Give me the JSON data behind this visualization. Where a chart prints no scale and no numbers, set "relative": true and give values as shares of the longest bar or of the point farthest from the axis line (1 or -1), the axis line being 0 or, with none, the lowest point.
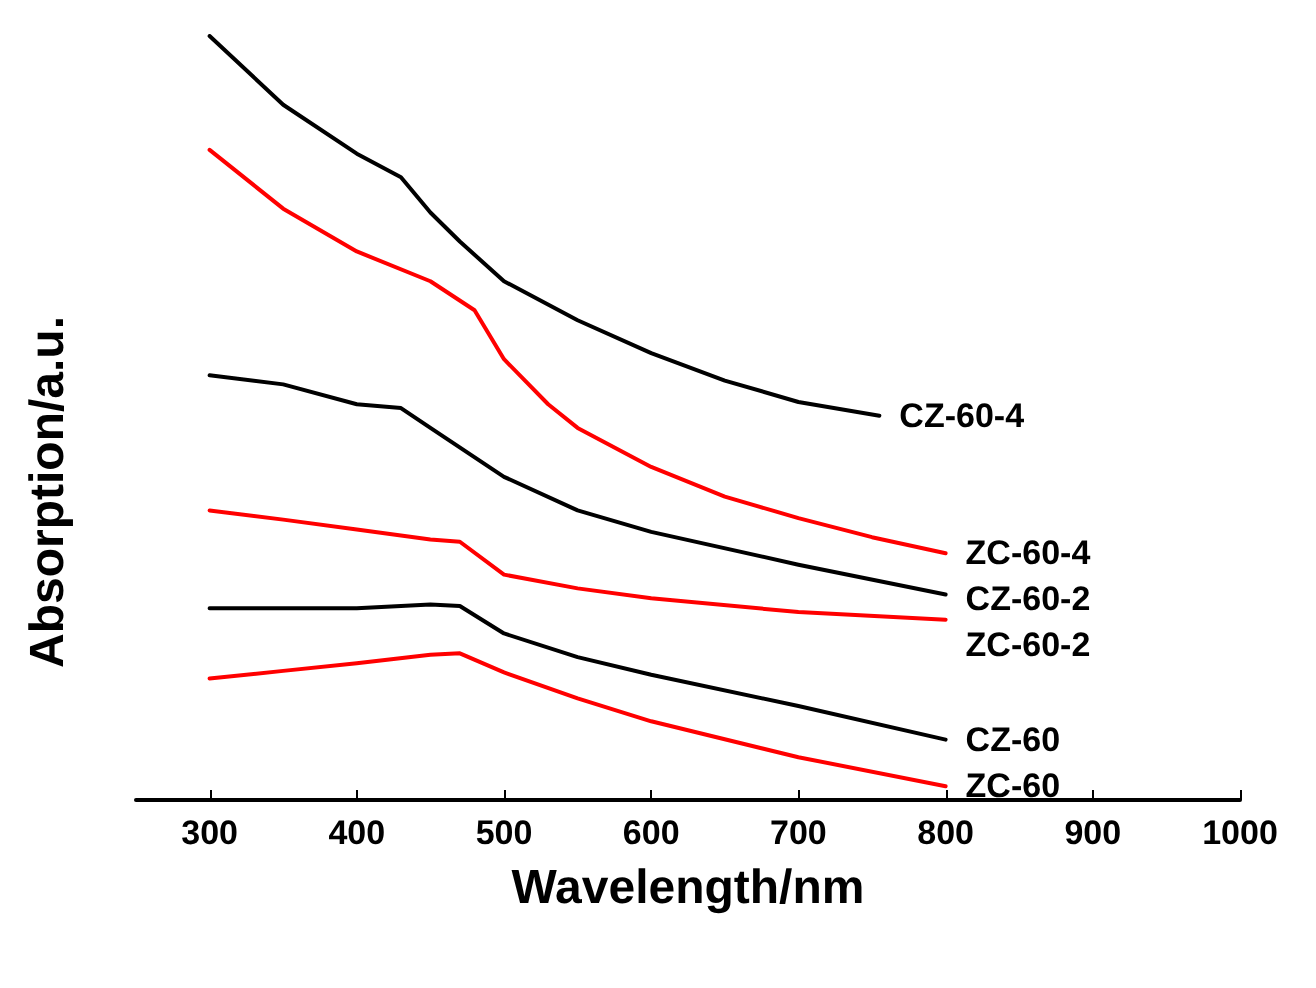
{
  "chart_data": {
    "type": "line",
    "relative": true,
    "xlabel": "Wavelength/nm",
    "ylabel": "Absorption/a.u.",
    "xlim": [
      250,
      1000
    ],
    "xticks": [
      300,
      400,
      500,
      600,
      700,
      800,
      900,
      1000
    ],
    "grid": false,
    "legend": false,
    "marker": "none",
    "line_style": "solid",
    "series": [
      {
        "name": "CZ-60-4",
        "color": "#000000",
        "x": [
          300,
          350,
          400,
          430,
          450,
          470,
          500,
          550,
          600,
          650,
          700,
          755
        ],
        "values": [
          1,
          0.91,
          0.846,
          0.815,
          0.769,
          0.731,
          0.679,
          0.628,
          0.585,
          0.549,
          0.521,
          0.503
        ]
      },
      {
        "name": "ZC-60-4",
        "color": "#ff0000",
        "x": [
          300,
          350,
          400,
          450,
          480,
          500,
          530,
          550,
          600,
          650,
          700,
          750,
          800
        ],
        "values": [
          0.851,
          0.774,
          0.718,
          0.679,
          0.641,
          0.577,
          0.518,
          0.487,
          0.436,
          0.397,
          0.369,
          0.344,
          0.323
        ]
      },
      {
        "name": "CZ-60-2",
        "color": "#000000",
        "x": [
          300,
          350,
          400,
          430,
          450,
          500,
          550,
          600,
          700,
          800
        ],
        "values": [
          0.556,
          0.544,
          0.518,
          0.513,
          0.487,
          0.423,
          0.379,
          0.351,
          0.308,
          0.269
        ]
      },
      {
        "name": "ZC-60-2",
        "color": "#ff0000",
        "x": [
          300,
          350,
          400,
          450,
          470,
          500,
          550,
          600,
          700,
          800
        ],
        "values": [
          0.379,
          0.367,
          0.354,
          0.341,
          0.338,
          0.295,
          0.277,
          0.264,
          0.246,
          0.236
        ]
      },
      {
        "name": "CZ-60",
        "color": "#000000",
        "x": [
          300,
          400,
          450,
          470,
          500,
          550,
          600,
          700,
          800
        ],
        "values": [
          0.251,
          0.251,
          0.256,
          0.254,
          0.218,
          0.187,
          0.164,
          0.123,
          0.079
        ]
      },
      {
        "name": "ZC-60",
        "color": "#ff0000",
        "x": [
          300,
          350,
          400,
          450,
          470,
          500,
          550,
          600,
          700,
          800
        ],
        "values": [
          0.159,
          0.169,
          0.179,
          0.19,
          0.192,
          0.167,
          0.133,
          0.103,
          0.056,
          0.018
        ]
      }
    ]
  }
}
